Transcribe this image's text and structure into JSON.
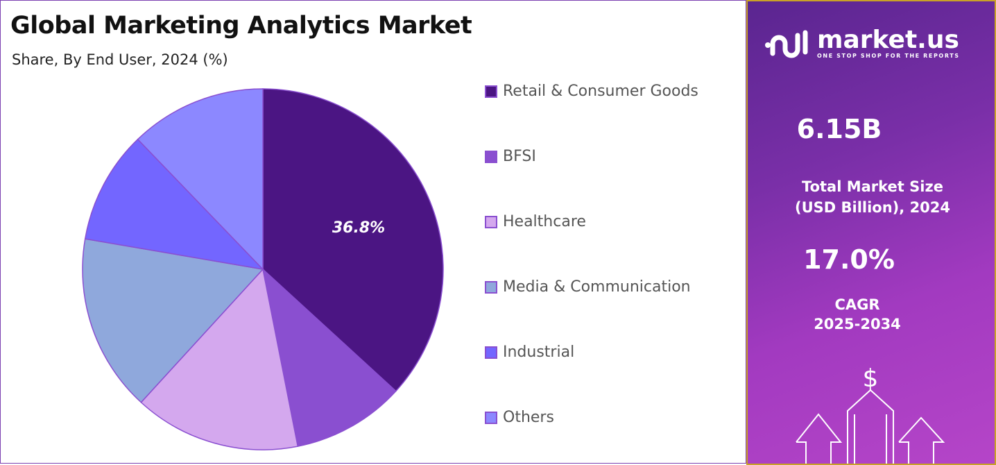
{
  "header": {
    "title": "Global Marketing Analytics Market",
    "subtitle": "Share, By End User, 2024 (%)"
  },
  "chart_data": {
    "type": "pie",
    "title": "Global Marketing Analytics Market",
    "subtitle": "Share, By End User, 2024 (%)",
    "categories": [
      "Retail & Consumer Goods",
      "BFSI",
      "Healthcare",
      "Media & Communication",
      "Industrial",
      "Others"
    ],
    "values": [
      36.8,
      10.1,
      14.9,
      15.9,
      10.1,
      12.2
    ],
    "colors": [
      "#4b1583",
      "#8a4fd0",
      "#d4a8ee",
      "#8fa8dc",
      "#7366ff",
      "#8c88ff"
    ],
    "data_labels": [
      "36.8%",
      "",
      "",
      "",
      "",
      ""
    ],
    "start_angle": "top, clockwise",
    "legend_placement": "right"
  },
  "panel": {
    "brand": "market.us",
    "tagline": "ONE STOP SHOP FOR THE REPORTS",
    "market_size": "6.15B",
    "market_size_label_1": "Total Market Size",
    "market_size_label_2": "(USD Billion), 2024",
    "cagr": "17.0%",
    "cagr_label_1": "CAGR",
    "cagr_label_2": "2025-2034",
    "accent_border": "#c9a227"
  }
}
